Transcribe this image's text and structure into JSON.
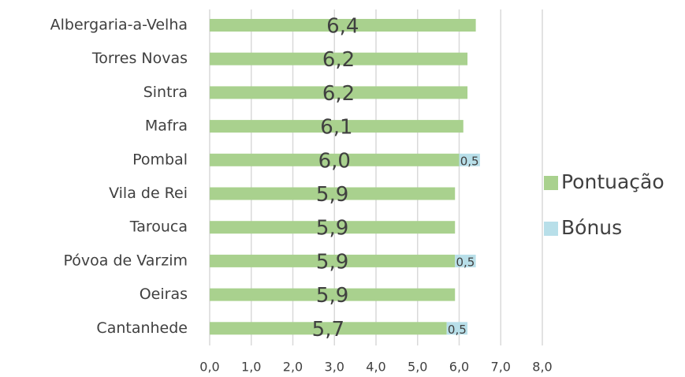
{
  "chart_data": {
    "type": "stacked-bar-horizontal",
    "categories": [
      "Albergaria-a-Velha",
      "Torres Novas",
      "Sintra",
      "Mafra",
      "Pombal",
      "Vila de Rei",
      "Tarouca",
      "Póvoa de Varzim",
      "Oeiras",
      "Cantanhede"
    ],
    "series": [
      {
        "name": "Pontuação",
        "color": "#a9d18e",
        "values": [
          6.4,
          6.2,
          6.2,
          6.1,
          6.0,
          5.9,
          5.9,
          5.9,
          5.9,
          5.7
        ],
        "value_labels": [
          "6,4",
          "6,2",
          "6,2",
          "6,1",
          "6,0",
          "5,9",
          "5,9",
          "5,9",
          "5,9",
          "5,7"
        ]
      },
      {
        "name": "Bónus",
        "color": "#b8dfe9",
        "values": [
          null,
          null,
          null,
          null,
          0.5,
          null,
          null,
          0.5,
          null,
          0.5
        ],
        "value_labels": [
          null,
          null,
          null,
          null,
          "0,5",
          null,
          null,
          "0,5",
          null,
          "0,5"
        ]
      }
    ],
    "xlim": [
      0,
      8
    ],
    "xticks": [
      {
        "value": 0,
        "label": "0,0"
      },
      {
        "value": 1,
        "label": "1,0"
      },
      {
        "value": 2,
        "label": "2,0"
      },
      {
        "value": 3,
        "label": "3,0"
      },
      {
        "value": 4,
        "label": "4,0"
      },
      {
        "value": 5,
        "label": "5,0"
      },
      {
        "value": 6,
        "label": "6,0"
      },
      {
        "value": 7,
        "label": "7,0"
      },
      {
        "value": 8,
        "label": "8,0"
      }
    ],
    "grid": true,
    "legend": "right"
  }
}
